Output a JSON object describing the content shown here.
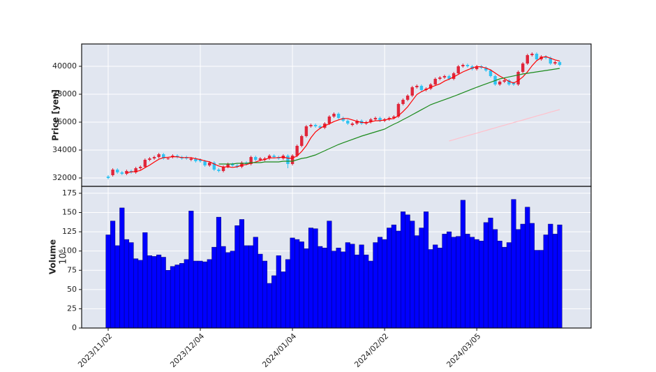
{
  "chart_data": [
    {
      "type": "candlestick",
      "ylabel": "Price [yen]",
      "ylim": [
        31400,
        41600
      ],
      "yticks": [
        32000,
        34000,
        36000,
        38000,
        40000
      ],
      "grid": true,
      "up_color": "#e0263a",
      "down_color": "#31c3f2",
      "open": [
        32100,
        32200,
        32600,
        32400,
        32300,
        32500,
        32400,
        32700,
        32800,
        33300,
        33400,
        33500,
        33700,
        33400,
        33500,
        33600,
        33500,
        33500,
        33300,
        33400,
        33300,
        33200,
        32900,
        33100,
        32600,
        32500,
        32800,
        33000,
        32900,
        32800,
        33100,
        33000,
        33500,
        33300,
        33300,
        33400,
        33600,
        33500,
        33400,
        33600,
        33000,
        33600,
        34300,
        35000,
        35700,
        35800,
        35700,
        35600,
        35900,
        36400,
        36600,
        36300,
        36100,
        35800,
        35900,
        36100,
        35900,
        36000,
        36200,
        36300,
        36100,
        36200,
        36300,
        36400,
        37300,
        37600,
        37900,
        38500,
        38600,
        38300,
        38400,
        38700,
        39100,
        39200,
        39300,
        39100,
        39500,
        40000,
        40100,
        40000,
        39800,
        40000,
        39900,
        39700,
        39300,
        38700,
        38900,
        39000,
        38800,
        38700,
        39600,
        40200,
        40800,
        40900,
        40500,
        40700,
        40600,
        40200,
        40300
      ],
      "high": [
        32200,
        32700,
        32700,
        32500,
        32600,
        32600,
        32800,
        32900,
        33400,
        33500,
        33600,
        33800,
        33800,
        33500,
        33700,
        33700,
        33600,
        33600,
        33500,
        33500,
        33400,
        33300,
        33200,
        33200,
        32700,
        32900,
        33100,
        33100,
        33000,
        33200,
        33200,
        33600,
        33600,
        33500,
        33500,
        33700,
        33700,
        33600,
        33700,
        33700,
        33700,
        34400,
        35100,
        35800,
        35900,
        35900,
        35800,
        36000,
        36500,
        36700,
        36700,
        36400,
        36200,
        36000,
        36200,
        36200,
        36100,
        36300,
        36400,
        36400,
        36300,
        36400,
        36500,
        37400,
        37700,
        38000,
        38600,
        38700,
        38700,
        38500,
        38800,
        39200,
        39300,
        39400,
        39400,
        39600,
        40100,
        40200,
        40200,
        40100,
        40100,
        40100,
        40000,
        39800,
        39400,
        39000,
        39100,
        39100,
        38900,
        39700,
        40300,
        40900,
        41000,
        41000,
        40800,
        40800,
        40700,
        40400,
        40400
      ],
      "low": [
        31900,
        32100,
        32300,
        32200,
        32200,
        32300,
        32300,
        32600,
        32700,
        33200,
        33300,
        33400,
        33300,
        33300,
        33400,
        33400,
        33300,
        33300,
        33200,
        33100,
        33100,
        32800,
        32800,
        32500,
        32400,
        32400,
        32700,
        32800,
        32700,
        32700,
        32900,
        32900,
        33200,
        33200,
        33200,
        33300,
        33400,
        33300,
        33300,
        32700,
        32900,
        33500,
        34200,
        34900,
        35600,
        35600,
        35500,
        35500,
        35800,
        36300,
        36200,
        36000,
        35800,
        35700,
        35800,
        35800,
        35800,
        35900,
        36100,
        36000,
        36000,
        36100,
        36200,
        36300,
        37200,
        37500,
        37800,
        38400,
        38200,
        38200,
        38300,
        38600,
        39000,
        39100,
        39000,
        39000,
        39400,
        39900,
        39900,
        39700,
        39700,
        39800,
        39600,
        39200,
        38600,
        38600,
        38800,
        38600,
        38600,
        38600,
        39500,
        40100,
        40700,
        40400,
        40400,
        40500,
        40100,
        40100,
        40000
      ],
      "close": [
        32000,
        32600,
        32400,
        32300,
        32500,
        32400,
        32700,
        32800,
        33300,
        33400,
        33500,
        33700,
        33400,
        33400,
        33600,
        33500,
        33400,
        33400,
        33400,
        33200,
        33200,
        32900,
        33100,
        32600,
        32500,
        32800,
        33000,
        32900,
        32800,
        33100,
        33000,
        33500,
        33300,
        33400,
        33400,
        33600,
        33500,
        33400,
        33600,
        33000,
        33600,
        34300,
        35000,
        35700,
        35800,
        35700,
        35600,
        35900,
        36400,
        36600,
        36300,
        36100,
        35900,
        35900,
        36100,
        35900,
        36000,
        36200,
        36300,
        36100,
        36200,
        36300,
        36400,
        37300,
        37600,
        37900,
        38500,
        38600,
        38300,
        38400,
        38700,
        39100,
        39200,
        39300,
        39100,
        39500,
        40000,
        40100,
        40000,
        39800,
        40000,
        39900,
        39700,
        39300,
        38700,
        38900,
        39000,
        38700,
        38700,
        39600,
        40200,
        40800,
        40900,
        40500,
        40700,
        40600,
        40200,
        40300,
        40100
      ],
      "series": [
        {
          "color": "#ff0000",
          "values": [
            null,
            null,
            null,
            null,
            32360,
            32440,
            32460,
            32540,
            32740,
            32920,
            33140,
            33340,
            33460,
            33480,
            33520,
            33520,
            33460,
            33460,
            33460,
            33380,
            33320,
            33220,
            33160,
            33000,
            32860,
            32780,
            32800,
            32760,
            32800,
            32920,
            32960,
            33060,
            33140,
            33260,
            33320,
            33440,
            33440,
            33460,
            33500,
            33420,
            33420,
            33580,
            33900,
            34320,
            34880,
            35300,
            35560,
            35740,
            35880,
            36040,
            36160,
            36260,
            36260,
            36160,
            36060,
            35980,
            35960,
            36020,
            36100,
            36100,
            36160,
            36220,
            36260,
            36460,
            36760,
            37100,
            37540,
            37980,
            38180,
            38340,
            38500,
            38620,
            38740,
            38940,
            39080,
            39240,
            39420,
            39600,
            39740,
            39880,
            39980,
            39960,
            39880,
            39740,
            39520,
            39300,
            39120,
            38920,
            38800,
            38980,
            39240,
            39600,
            40040,
            40400,
            40620,
            40700,
            40580,
            40460,
            40380
          ]
        },
        {
          "color": "#1a8a1a",
          "values": [
            null,
            null,
            null,
            null,
            null,
            null,
            null,
            null,
            null,
            null,
            null,
            null,
            null,
            null,
            null,
            null,
            null,
            null,
            null,
            null,
            null,
            null,
            null,
            null,
            33000,
            33000,
            33000,
            33000,
            33050,
            33050,
            33050,
            33100,
            33100,
            33100,
            33150,
            33150,
            33150,
            33150,
            33200,
            33200,
            33200,
            33300,
            33400,
            33450,
            33550,
            33650,
            33800,
            33950,
            34100,
            34250,
            34400,
            34520,
            34640,
            34760,
            34880,
            35000,
            35100,
            35200,
            35300,
            35400,
            35500,
            35680,
            35850,
            36000,
            36180,
            36350,
            36530,
            36710,
            36890,
            37070,
            37250,
            37370,
            37490,
            37610,
            37730,
            37850,
            37980,
            38110,
            38240,
            38370,
            38500,
            38620,
            38740,
            38860,
            38980,
            39100,
            39170,
            39240,
            39310,
            39380,
            39450,
            39500,
            39550,
            39600,
            39650,
            39700,
            39750,
            39800,
            39850
          ]
        },
        {
          "color": "#ffc0cb",
          "values": [
            null,
            null,
            null,
            null,
            null,
            null,
            null,
            null,
            null,
            null,
            null,
            null,
            null,
            null,
            null,
            null,
            null,
            null,
            null,
            null,
            null,
            null,
            null,
            null,
            null,
            null,
            null,
            null,
            null,
            null,
            null,
            null,
            null,
            null,
            null,
            null,
            null,
            null,
            null,
            null,
            null,
            null,
            null,
            null,
            null,
            null,
            null,
            null,
            null,
            null,
            null,
            null,
            null,
            null,
            null,
            null,
            null,
            null,
            null,
            null,
            null,
            null,
            null,
            null,
            null,
            null,
            null,
            null,
            null,
            null,
            null,
            null,
            null,
            null,
            34650,
            34740,
            34840,
            34930,
            35030,
            35120,
            35210,
            35310,
            35400,
            35500,
            35590,
            35690,
            35780,
            35870,
            35970,
            36060,
            36150,
            36250,
            36340,
            36440,
            36530,
            36620,
            36720,
            36810,
            36900
          ]
        }
      ]
    },
    {
      "type": "bar",
      "ylabel": "Volume",
      "yunit": "10⁶",
      "ylim": [
        0,
        184
      ],
      "yticks": [
        0,
        25,
        50,
        75,
        100,
        125,
        150,
        175
      ],
      "grid": true,
      "color": "#0000ff",
      "categories": [
        "2023/11/02",
        null,
        null,
        null,
        null,
        null,
        null,
        null,
        null,
        null,
        null,
        null,
        null,
        null,
        null,
        null,
        null,
        null,
        null,
        null,
        "2023/12/04",
        null,
        null,
        null,
        null,
        null,
        null,
        null,
        null,
        null,
        null,
        null,
        null,
        null,
        null,
        null,
        null,
        null,
        null,
        null,
        "2024/01/04",
        null,
        null,
        null,
        null,
        null,
        null,
        null,
        null,
        null,
        null,
        null,
        null,
        null,
        null,
        null,
        null,
        null,
        null,
        null,
        "2024/02/02",
        null,
        null,
        null,
        null,
        null,
        null,
        null,
        null,
        null,
        null,
        null,
        null,
        null,
        null,
        null,
        null,
        null,
        null,
        null,
        "2024/03/05",
        null,
        null,
        null,
        null,
        null,
        null,
        null,
        null,
        null,
        null,
        null,
        null,
        null,
        null,
        null,
        null,
        null,
        null
      ],
      "values": [
        121,
        139,
        107,
        156,
        115,
        111,
        90,
        88,
        124,
        94,
        93,
        95,
        92,
        75,
        80,
        82,
        84,
        89,
        152,
        87,
        87,
        86,
        89,
        105,
        144,
        106,
        98,
        100,
        133,
        141,
        107,
        107,
        118,
        96,
        87,
        58,
        68,
        94,
        73,
        89,
        117,
        115,
        112,
        103,
        130,
        129,
        106,
        104,
        139,
        100,
        104,
        99,
        111,
        109,
        95,
        108,
        95,
        87,
        111,
        118,
        115,
        130,
        134,
        126,
        151,
        147,
        139,
        120,
        130,
        151,
        102,
        108,
        104,
        122,
        125,
        118,
        119,
        166,
        122,
        118,
        115,
        113,
        137,
        143,
        128,
        113,
        105,
        111,
        167,
        128,
        135,
        157,
        136,
        101,
        101,
        121,
        135,
        122,
        134
      ]
    }
  ]
}
